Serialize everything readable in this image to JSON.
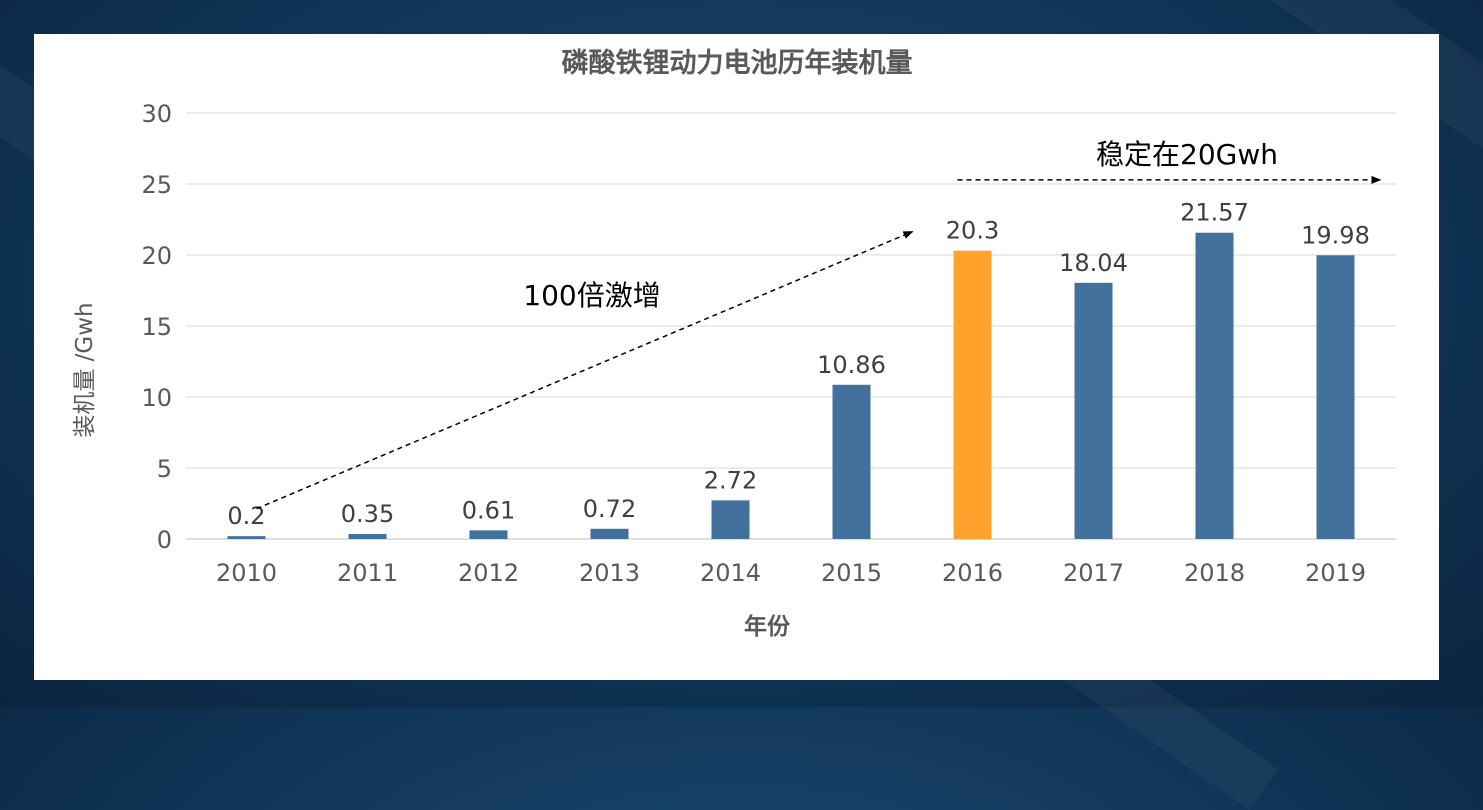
{
  "chart_data": {
    "type": "bar",
    "title": "磷酸铁锂动力电池历年装机量",
    "xlabel": "年份",
    "ylabel": "装机量 /Gwh",
    "categories": [
      "2010",
      "2011",
      "2012",
      "2013",
      "2014",
      "2015",
      "2016",
      "2017",
      "2018",
      "2019"
    ],
    "values": [
      0.2,
      0.35,
      0.61,
      0.72,
      2.72,
      10.86,
      20.3,
      18.04,
      21.57,
      19.98
    ],
    "value_labels": [
      "0.2",
      "0.35",
      "0.61",
      "0.72",
      "2.72",
      "10.86",
      "20.3",
      "18.04",
      "21.57",
      "19.98"
    ],
    "ylim": [
      0,
      30
    ],
    "yticks": [
      "0",
      "5",
      "10",
      "15",
      "20",
      "25",
      "30"
    ],
    "grid": true,
    "colors": {
      "default": "#41719c",
      "highlight": "#ffa12b",
      "highlight_category": "2016"
    },
    "annotations": [
      {
        "text": "100倍激增",
        "arrow_from": [
          "2010",
          1.5
        ],
        "arrow_to": [
          "2016",
          22
        ]
      },
      {
        "text": "稳定在20Gwh",
        "arrow_from": [
          "2016",
          25.5
        ],
        "arrow_to": [
          "2019",
          25.5
        ]
      }
    ]
  }
}
